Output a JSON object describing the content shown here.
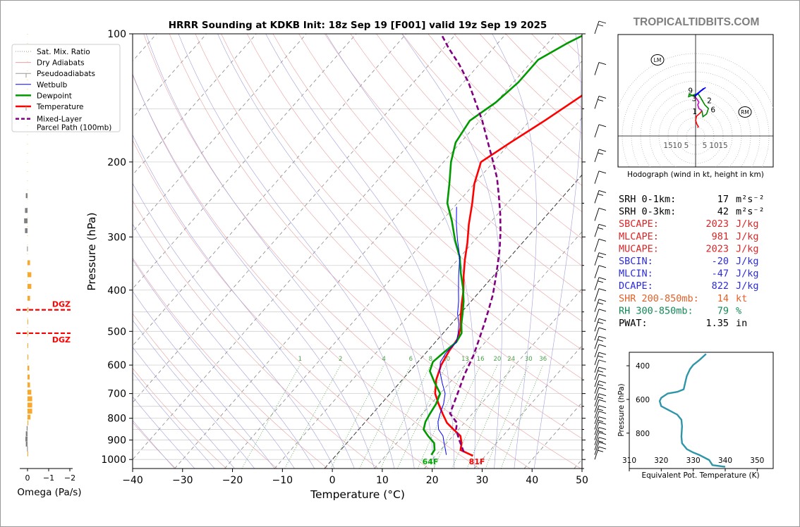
{
  "chart_data": [
    {
      "type": "line",
      "name": "skewt",
      "title": "HRRR Sounding at KDKB Init: 18z Sep 19 [F001] valid 19z Sep 19 2025",
      "xlabel": "Temperature (°C)",
      "ylabel": "Pressure (hPa)",
      "xlim": [
        -40,
        50
      ],
      "ylim": [
        1050,
        100
      ],
      "y_scale": "log",
      "x_ticks": [
        "−40",
        "−30",
        "−20",
        "−10",
        "0",
        "10",
        "20",
        "30",
        "40",
        "50"
      ],
      "y_ticks": [
        "100",
        "200",
        "300",
        "400",
        "500",
        "600",
        "700",
        "800",
        "900",
        "1000"
      ],
      "legend": {
        "placement": "upper-left (outside)",
        "entries": [
          "Sat. Mix. Ratio",
          "Dry Adiabats",
          "Pseudoadiabats",
          "Wetbulb",
          "Dewpoint",
          "Temperature",
          "Mixed-Layer\nParcel Path (100mb)"
        ]
      },
      "mixing_ratio_labels": [
        "1",
        "2",
        "4",
        "6",
        "8",
        "10",
        "13",
        "16",
        "20",
        "24",
        "30",
        "36"
      ],
      "surface_labels": {
        "dewpoint": "64F",
        "temperature": "81F"
      },
      "series": [
        {
          "name": "Temperature",
          "color": "#ff0000",
          "points": [
            [
              27.5,
              980
            ],
            [
              24,
              950
            ],
            [
              23,
              915
            ],
            [
              21.5,
              880
            ],
            [
              19,
              850
            ],
            [
              16.5,
              820
            ],
            [
              14,
              780
            ],
            [
              11.5,
              740
            ],
            [
              9,
              700
            ],
            [
              6.8,
              650
            ],
            [
              5.2,
              600
            ],
            [
              4.3,
              555
            ],
            [
              3.9,
              520
            ],
            [
              2.5,
              490
            ],
            [
              0.5,
              460
            ],
            [
              -1.5,
              430
            ],
            [
              -3.5,
              400
            ],
            [
              -6,
              370
            ],
            [
              -8.5,
              340
            ],
            [
              -11,
              310
            ],
            [
              -14,
              280
            ],
            [
              -17,
              250
            ],
            [
              -20,
              225
            ],
            [
              -22.5,
              200
            ],
            [
              -20,
              180
            ],
            [
              -17,
              160
            ],
            [
              -14,
              140
            ],
            [
              -12,
              125
            ],
            [
              -10,
              115
            ],
            [
              -8,
              105
            ],
            [
              -6,
              100
            ]
          ]
        },
        {
          "name": "Dewpoint",
          "color": "#009900",
          "points": [
            [
              19,
              975
            ],
            [
              18.8,
              950
            ],
            [
              17.5,
              915
            ],
            [
              15,
              880
            ],
            [
              13,
              850
            ],
            [
              12,
              815
            ],
            [
              11.5,
              780
            ],
            [
              11,
              740
            ],
            [
              10,
              700
            ],
            [
              7,
              660
            ],
            [
              4,
              620
            ],
            [
              3,
              590
            ],
            [
              3.5,
              560
            ],
            [
              4.2,
              530
            ],
            [
              3.7,
              505
            ],
            [
              2,
              480
            ],
            [
              0.5,
              455
            ],
            [
              -1.5,
              425
            ],
            [
              -4,
              395
            ],
            [
              -7,
              365
            ],
            [
              -10,
              335
            ],
            [
              -14,
              305
            ],
            [
              -18,
              275
            ],
            [
              -22,
              250
            ],
            [
              -25,
              225
            ],
            [
              -28.5,
              200
            ],
            [
              -31,
              180
            ],
            [
              -32,
              160
            ],
            [
              -30,
              145
            ],
            [
              -29,
              130
            ],
            [
              -29,
              115
            ],
            [
              -26,
              105
            ],
            [
              -24,
              100
            ]
          ]
        },
        {
          "name": "Wetbulb",
          "color": "#0000ff",
          "points": [
            [
              22,
              975
            ],
            [
              21,
              950
            ],
            [
              19.5,
              915
            ],
            [
              18,
              880
            ],
            [
              16,
              850
            ],
            [
              14.5,
              815
            ],
            [
              13.5,
              780
            ],
            [
              12.5,
              740
            ],
            [
              11,
              700
            ],
            [
              8.5,
              660
            ],
            [
              6,
              620
            ],
            [
              4.5,
              590
            ],
            [
              4,
              560
            ],
            [
              4.2,
              530
            ],
            [
              3,
              505
            ],
            [
              1.5,
              480
            ],
            [
              -0.5,
              455
            ],
            [
              -2.5,
              425
            ],
            [
              -4.5,
              400
            ],
            [
              -7,
              370
            ],
            [
              -10,
              335
            ],
            [
              -13.5,
              305
            ],
            [
              -16.5,
              280
            ],
            [
              -19.5,
              255
            ]
          ]
        },
        {
          "name": "Mixed-Layer Parcel Path (100mb)",
          "color": "#800080",
          "dashed": true,
          "points": [
            [
              25,
              960
            ],
            [
              22,
              900
            ],
            [
              19.5,
              850
            ],
            [
              18.5,
              820
            ],
            [
              15.5,
              780
            ],
            [
              13.5,
              700
            ],
            [
              11.5,
              630
            ],
            [
              10,
              570
            ],
            [
              8.2,
              520
            ],
            [
              6.6,
              480
            ],
            [
              5,
              445
            ],
            [
              3.2,
              410
            ],
            [
              1.2,
              380
            ],
            [
              -1,
              350
            ],
            [
              -3.5,
              320
            ],
            [
              -6.3,
              292
            ],
            [
              -9.5,
              265
            ],
            [
              -13,
              240
            ],
            [
              -16.5,
              218
            ],
            [
              -20.5,
              198
            ],
            [
              -25,
              178
            ],
            [
              -29.5,
              160
            ],
            [
              -34,
              145
            ],
            [
              -39,
              130
            ],
            [
              -44,
              118
            ],
            [
              -49,
              108
            ],
            [
              -53,
              100
            ]
          ]
        }
      ]
    },
    {
      "type": "bar",
      "name": "omega",
      "xlabel": "Omega (Pa/s)",
      "x_ticks": [
        "0",
        "−1",
        "−2"
      ],
      "xlim": [
        0.4,
        -2.2
      ],
      "dgz_label": "DGZ",
      "dgz_pressures": [
        445,
        505
      ],
      "bars": [
        {
          "p": 240,
          "v": 0.08
        },
        {
          "p": 260,
          "v": 0.12
        },
        {
          "p": 275,
          "v": 0.16
        },
        {
          "p": 290,
          "v": 0.12
        },
        {
          "p": 320,
          "v": 0.02
        },
        {
          "p": 345,
          "v": -0.12
        },
        {
          "p": 368,
          "v": -0.18
        },
        {
          "p": 392,
          "v": -0.18
        },
        {
          "p": 418,
          "v": -0.12
        },
        {
          "p": 445,
          "v": -0.04
        },
        {
          "p": 475,
          "v": -0.02
        },
        {
          "p": 505,
          "v": -0.02
        },
        {
          "p": 540,
          "v": -0.02
        },
        {
          "p": 575,
          "v": -0.04
        },
        {
          "p": 610,
          "v": -0.08
        },
        {
          "p": 640,
          "v": -0.1
        },
        {
          "p": 668,
          "v": -0.12
        },
        {
          "p": 695,
          "v": -0.18
        },
        {
          "p": 720,
          "v": -0.22
        },
        {
          "p": 745,
          "v": -0.22
        },
        {
          "p": 770,
          "v": -0.22
        },
        {
          "p": 795,
          "v": -0.14
        },
        {
          "p": 820,
          "v": -0.04
        },
        {
          "p": 845,
          "v": 0.04
        },
        {
          "p": 870,
          "v": 0.08
        },
        {
          "p": 895,
          "v": 0.1
        },
        {
          "p": 920,
          "v": 0.08
        },
        {
          "p": 945,
          "v": 0.02
        },
        {
          "p": 970,
          "v": -0.02
        }
      ]
    },
    {
      "type": "line",
      "name": "hodograph",
      "caption": "Hodograph (wind in kt, height in km)",
      "x_ticks": [
        "15",
        "10",
        "5",
        "5",
        "10",
        "15"
      ],
      "height_labels": [
        "1",
        "2",
        "3",
        "6",
        "9"
      ],
      "markers": [
        "LM",
        "RM"
      ],
      "segments": [
        {
          "color": "#ff0000",
          "points": [
            [
              1.2,
              -4.5
            ],
            [
              1.5,
              -5.2
            ],
            [
              0.8,
              -6.2
            ],
            [
              0.0,
              -8.5
            ],
            [
              0.5,
              -10.8
            ],
            [
              2.5,
              -12.5
            ],
            [
              3.5,
              -13.8
            ]
          ]
        },
        {
          "color": "#cc00cc",
          "points": [
            [
              3.5,
              -13.8
            ],
            [
              1.8,
              -15
            ],
            [
              1.2,
              -17
            ],
            [
              1.8,
              -18.5
            ],
            [
              0.5,
              -20.5
            ],
            [
              -0.5,
              -21.5
            ]
          ]
        },
        {
          "color": "#008800",
          "points": [
            [
              -0.5,
              -21.5
            ],
            [
              -2.5,
              -22.5
            ],
            [
              -3.5,
              -22.8
            ],
            [
              -3.8,
              -21.5
            ],
            [
              0,
              -22.8
            ],
            [
              1.5,
              -22.8
            ],
            [
              3,
              -20.5
            ],
            [
              5,
              -17
            ],
            [
              7,
              -15
            ],
            [
              6,
              -12
            ],
            [
              4,
              -10.5
            ],
            [
              3.5,
              -13.8
            ]
          ]
        },
        {
          "color": "#0000ff",
          "points": [
            [
              -0.5,
              -21.5
            ],
            [
              4.5,
              -26
            ],
            [
              -0.5,
              -22
            ],
            [
              5.5,
              -26.5
            ]
          ]
        }
      ]
    },
    {
      "type": "line",
      "name": "theta-e",
      "xlabel": "Equivalent Pot. Temperature (K)",
      "ylabel": "Pressure (hPa)",
      "xlim": [
        310,
        355
      ],
      "ylim": [
        1010,
        320
      ],
      "x_ticks": [
        "310",
        "320",
        "330",
        "340",
        "350"
      ],
      "y_ticks": [
        "400",
        "600",
        "800"
      ],
      "color": "#2e96a8",
      "points": [
        [
          340,
          1000
        ],
        [
          336,
          990
        ],
        [
          335,
          960
        ],
        [
          332,
          930
        ],
        [
          330,
          915
        ],
        [
          328,
          895
        ],
        [
          326.5,
          860
        ],
        [
          326.3,
          820
        ],
        [
          326.5,
          760
        ],
        [
          326.3,
          720
        ],
        [
          325,
          690
        ],
        [
          322,
          660
        ],
        [
          320,
          640
        ],
        [
          319.5,
          610
        ],
        [
          320,
          590
        ],
        [
          322,
          565
        ],
        [
          325,
          555
        ],
        [
          327,
          540
        ],
        [
          327.5,
          500
        ],
        [
          328,
          460
        ],
        [
          329,
          420
        ],
        [
          330,
          395
        ],
        [
          332,
          365
        ],
        [
          334,
          330
        ]
      ]
    }
  ],
  "header": {
    "site": "TROPICALTIDBITS.COM"
  },
  "indices": [
    {
      "label": "SRH 0-1km:",
      "value": "17",
      "unit": "m²s⁻²",
      "color": "#000000"
    },
    {
      "label": "SRH 0-3km:",
      "value": "42",
      "unit": "m²s⁻²",
      "color": "#000000"
    },
    {
      "label": "SBCAPE:",
      "value": "2023",
      "unit": "J/kg",
      "color": "#d62728"
    },
    {
      "label": "MLCAPE:",
      "value": "981",
      "unit": "J/kg",
      "color": "#d62728"
    },
    {
      "label": "MUCAPE:",
      "value": "2023",
      "unit": "J/kg",
      "color": "#d62728"
    },
    {
      "label": "SBCIN:",
      "value": "-20",
      "unit": "J/kg",
      "color": "#2b2bd6"
    },
    {
      "label": "MLCIN:",
      "value": "-47",
      "unit": "J/kg",
      "color": "#2b2bd6"
    },
    {
      "label": "DCAPE:",
      "value": "822",
      "unit": "J/kg",
      "color": "#2b2bd6"
    },
    {
      "label": "SHR 200-850mb:",
      "value": "14",
      "unit": "kt",
      "color": "#e0622a"
    },
    {
      "label": "RH 300-850mb:",
      "value": "79",
      "unit": "%",
      "color": "#118855"
    },
    {
      "label": "PWAT:",
      "value": "1.35",
      "unit": "in",
      "color": "#000000"
    }
  ]
}
